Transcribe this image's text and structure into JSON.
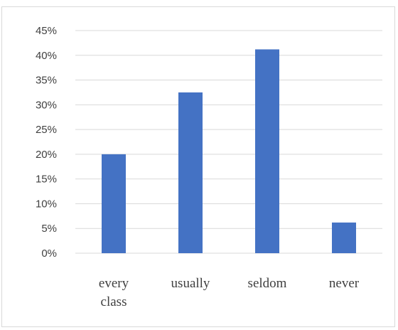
{
  "chart_data": {
    "type": "bar",
    "title": "",
    "xlabel": "",
    "ylabel": "",
    "categories": [
      "every class",
      "usually",
      "seldom",
      "never"
    ],
    "category_lines": [
      [
        "every",
        "class"
      ],
      [
        "usually"
      ],
      [
        "seldom"
      ],
      [
        "never"
      ]
    ],
    "values": [
      0.2,
      0.325,
      0.412,
      0.062
    ],
    "ylim": [
      0,
      0.45
    ],
    "y_ticks": [
      0,
      0.05,
      0.1,
      0.15,
      0.2,
      0.25,
      0.3,
      0.35,
      0.4,
      0.45
    ],
    "y_tick_labels": [
      "0%",
      "5%",
      "10%",
      "15%",
      "20%",
      "25%",
      "30%",
      "35%",
      "40%",
      "45%"
    ],
    "grid": true,
    "legend": "none",
    "colors": {
      "bar": "#4472c4",
      "gridline": "#d9d9d9",
      "text": "#404040"
    }
  }
}
